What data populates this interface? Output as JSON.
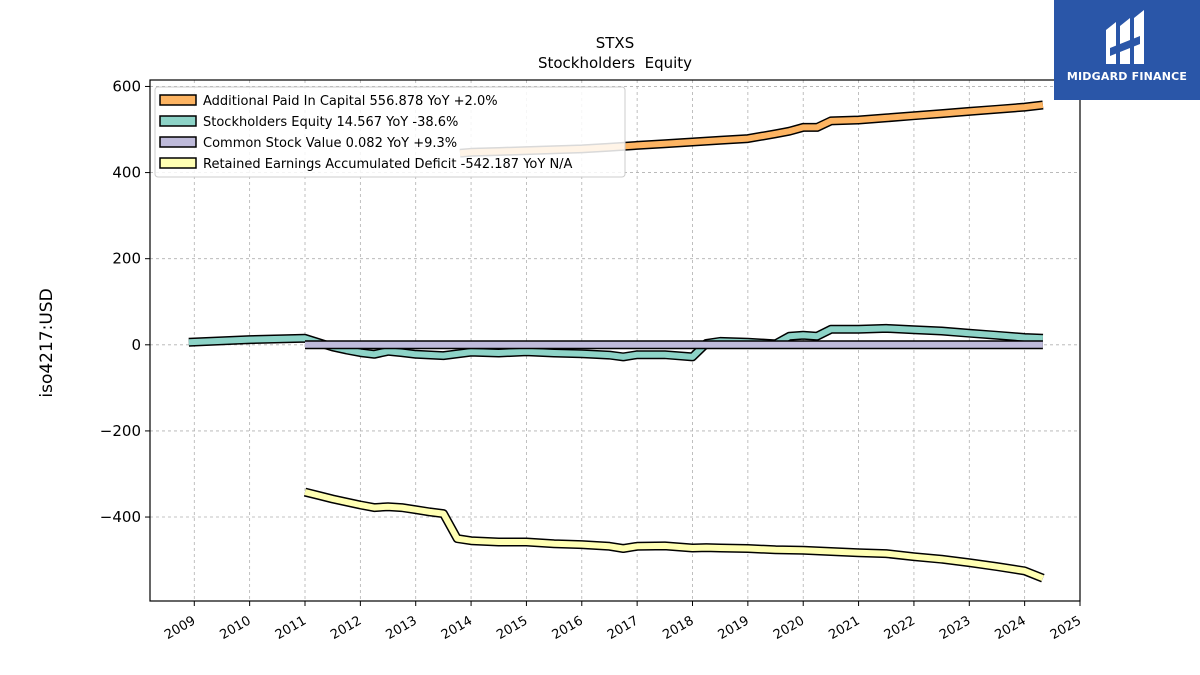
{
  "chart_data": {
    "type": "line",
    "title": "STXS",
    "subtitle": "Stockholders  Equity",
    "xlabel": "",
    "ylabel": "iso4217:USD",
    "xlim": [
      2008.2,
      2025.0
    ],
    "ylim": [
      -595,
      615
    ],
    "yticks": [
      600,
      400,
      200,
      0,
      -200,
      -400
    ],
    "ytick_labels": [
      "600",
      "400",
      "200",
      "0",
      "−200",
      "−400"
    ],
    "xticks": [
      2009,
      2010,
      2011,
      2012,
      2013,
      2014,
      2015,
      2016,
      2017,
      2018,
      2019,
      2020,
      2021,
      2022,
      2023,
      2024,
      2025
    ],
    "xtick_labels": [
      "2009",
      "2010",
      "2011",
      "2012",
      "2013",
      "2014",
      "2015",
      "2016",
      "2017",
      "2018",
      "2019",
      "2020",
      "2021",
      "2022",
      "2023",
      "2024",
      "2025"
    ],
    "grid": true,
    "legend_position": "top-left",
    "series": [
      {
        "name": "Additional Paid In Capital",
        "legend": "Additional Paid In Capital  556.878 YoY +2.0%",
        "color": "#fdb462",
        "x": [
          2013.8,
          2014.0,
          2014.5,
          2015.0,
          2015.5,
          2016.0,
          2016.5,
          2017.0,
          2017.5,
          2018.0,
          2018.5,
          2019.0,
          2019.5,
          2019.75,
          2020.0,
          2020.25,
          2020.5,
          2021.0,
          2021.5,
          2022.0,
          2022.5,
          2023.0,
          2023.5,
          2024.0,
          2024.33
        ],
        "values": [
          445,
          447,
          449,
          451,
          453,
          455,
          459,
          463,
          467,
          471,
          475,
          479,
          490,
          496,
          505,
          505,
          520,
          522,
          527,
          532,
          537,
          542,
          547,
          552,
          557
        ]
      },
      {
        "name": "Stockholders Equity",
        "legend": "Stockholders Equity  14.567 YoY -38.6%",
        "color": "#8dd3c7",
        "x": [
          2008.9,
          2010.0,
          2011.0,
          2011.5,
          2011.75,
          2012.0,
          2012.25,
          2012.5,
          2012.75,
          2013.0,
          2013.5,
          2014.0,
          2014.5,
          2015.0,
          2015.5,
          2016.0,
          2016.5,
          2016.75,
          2017.0,
          2017.5,
          2018.0,
          2018.25,
          2018.5,
          2019.0,
          2019.5,
          2019.75,
          2020.0,
          2020.25,
          2020.5,
          2021.0,
          2021.5,
          2022.0,
          2022.5,
          2023.0,
          2023.5,
          2024.0,
          2024.33
        ],
        "values": [
          6,
          12,
          15,
          -5,
          -12,
          -18,
          -22,
          -15,
          -18,
          -22,
          -25,
          -17,
          -19,
          -16,
          -19,
          -21,
          -24,
          -28,
          -23,
          -23,
          -28,
          3,
          8,
          6,
          2,
          20,
          22,
          20,
          36,
          36,
          38,
          35,
          32,
          27,
          22,
          17,
          15
        ]
      },
      {
        "name": "Common Stock Value",
        "legend": "Common Stock Value  0.082 YoY +9.3%",
        "color": "#bebada",
        "x": [
          2011.0,
          2024.33
        ],
        "values": [
          0.075,
          0.082
        ]
      },
      {
        "name": "Retained Earnings Accumulated Deficit",
        "legend": "Retained Earnings Accumulated Deficit  -542.187 YoY N/A",
        "color": "#ffffb3",
        "x": [
          2011.0,
          2011.25,
          2011.5,
          2011.75,
          2012.0,
          2012.25,
          2012.5,
          2012.75,
          2013.0,
          2013.25,
          2013.5,
          2013.75,
          2014.0,
          2014.5,
          2015.0,
          2015.5,
          2016.0,
          2016.5,
          2016.75,
          2017.0,
          2017.5,
          2018.0,
          2018.25,
          2018.5,
          2019.0,
          2019.5,
          2020.0,
          2020.5,
          2021.0,
          2021.5,
          2022.0,
          2022.5,
          2023.0,
          2023.5,
          2024.0,
          2024.33
        ],
        "values": [
          -342,
          -350,
          -358,
          -365,
          -372,
          -378,
          -376,
          -378,
          -383,
          -388,
          -392,
          -450,
          -455,
          -458,
          -458,
          -462,
          -464,
          -468,
          -473,
          -468,
          -467,
          -472,
          -471,
          -472,
          -473,
          -476,
          -477,
          -480,
          -483,
          -485,
          -492,
          -498,
          -506,
          -515,
          -525,
          -542
        ]
      }
    ]
  },
  "logo": {
    "text": "MIDGARD FINANCE",
    "color": "#2a56a8"
  }
}
